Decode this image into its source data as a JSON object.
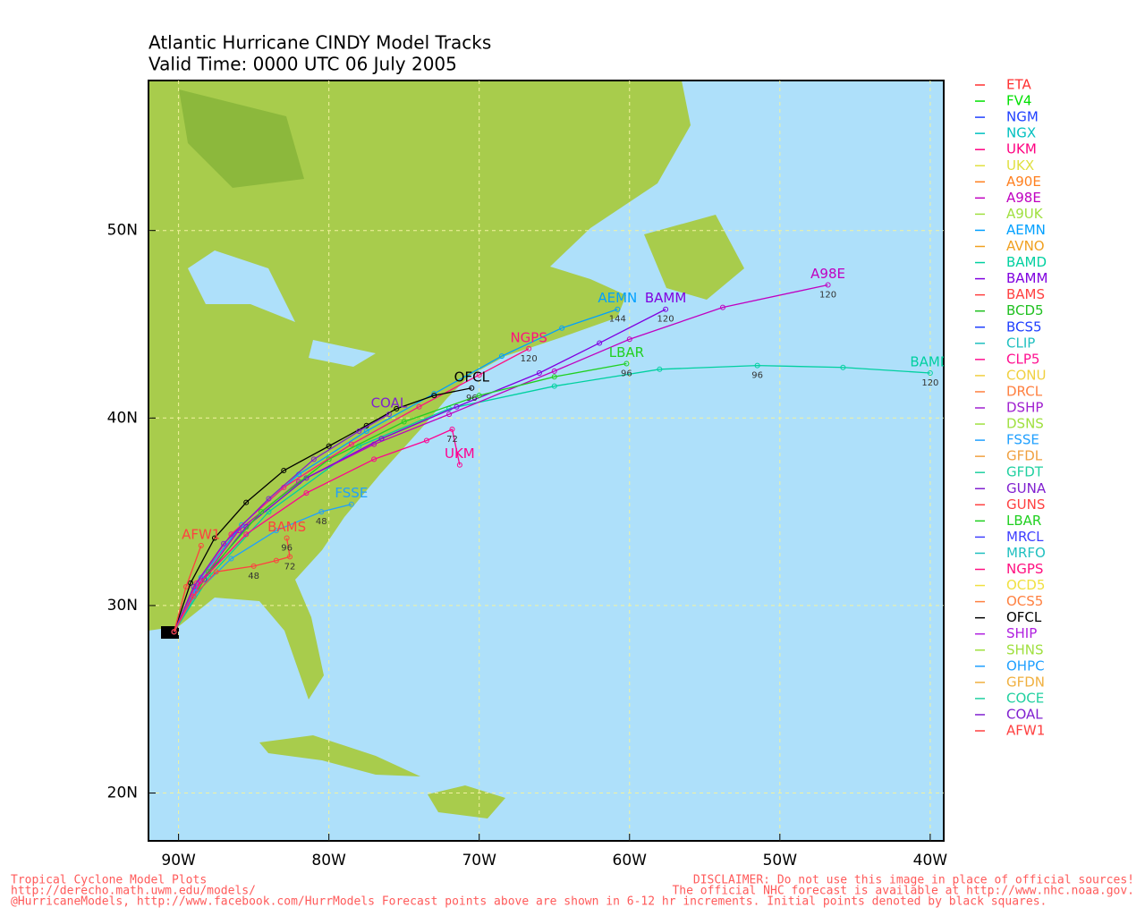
{
  "header": {
    "title": [
      "Atlantic Hurricane CINDY Model Tracks",
      "Valid Time: 0000 UTC 06 July 2005"
    ]
  },
  "map": {
    "xlim": [
      -92,
      -39.1
    ],
    "ylim": [
      17.45,
      58
    ],
    "xticks": [
      {
        "value": -90,
        "label": "90W"
      },
      {
        "value": -80,
        "label": "80W"
      },
      {
        "value": -70,
        "label": "70W"
      },
      {
        "value": -60,
        "label": "60W"
      },
      {
        "value": -50,
        "label": "50W"
      },
      {
        "value": -40,
        "label": "40W"
      }
    ],
    "yticks": [
      {
        "value": 20,
        "label": "20N"
      },
      {
        "value": 30,
        "label": "30N"
      },
      {
        "value": 40,
        "label": "40N"
      },
      {
        "value": 50,
        "label": "50N"
      }
    ],
    "grid": true,
    "tracks": [
      {
        "name": "BAMD",
        "color": "#00d0a0",
        "lon": [
          -90.3,
          -88,
          -84,
          -78,
          -72,
          -65,
          -58,
          -51.5,
          -45.8,
          -40
        ],
        "lat": [
          28.6,
          31.5,
          35,
          38.5,
          40.5,
          41.7,
          42.6,
          42.8,
          42.7,
          42.4
        ],
        "hours": [
          null,
          null,
          null,
          null,
          null,
          null,
          null,
          96,
          null,
          120
        ]
      },
      {
        "name": "A98E",
        "color": "#c000c0",
        "lon": [
          -90.3,
          -88.5,
          -86,
          -82,
          -77,
          -72,
          -65,
          -60,
          -53.8,
          -46.8
        ],
        "lat": [
          28.6,
          31.3,
          34,
          36.6,
          38.6,
          40.2,
          42.5,
          44.2,
          45.9,
          47.1
        ],
        "hours": [
          null,
          null,
          null,
          null,
          null,
          null,
          null,
          null,
          null,
          120
        ]
      },
      {
        "name": "BAMM",
        "color": "#8000e0",
        "lon": [
          -90.3,
          -88.3,
          -85.5,
          -81.5,
          -76.5,
          -71.5,
          -66,
          -62,
          -57.6
        ],
        "lat": [
          28.6,
          31.4,
          34.2,
          36.8,
          38.9,
          40.6,
          42.4,
          44,
          45.8
        ],
        "hours": [
          null,
          null,
          null,
          null,
          null,
          null,
          null,
          null,
          120
        ]
      },
      {
        "name": "AEMN",
        "color": "#00a0ff",
        "lon": [
          -90.3,
          -88.5,
          -85.8,
          -82,
          -77.5,
          -73,
          -68.5,
          -64.5,
          -60.8
        ],
        "lat": [
          28.6,
          31.5,
          34.3,
          37,
          39.3,
          41.3,
          43.3,
          44.8,
          45.8
        ],
        "hours": [
          null,
          null,
          null,
          null,
          null,
          null,
          null,
          null,
          144
        ]
      },
      {
        "name": "LBAR",
        "color": "#20d020",
        "lon": [
          -90.3,
          -88,
          -84.5,
          -80,
          -75,
          -70,
          -65,
          -60.2
        ],
        "lat": [
          28.6,
          31.8,
          35,
          37.8,
          39.8,
          41.2,
          42.2,
          42.9
        ],
        "hours": [
          null,
          null,
          null,
          null,
          null,
          null,
          null,
          96
        ]
      },
      {
        "name": "NGPS",
        "color": "#ff1080",
        "lon": [
          -90.3,
          -88.8,
          -86.5,
          -83,
          -78.5,
          -74,
          -70,
          -66.7
        ],
        "lat": [
          28.6,
          31.2,
          33.8,
          36.3,
          38.6,
          40.6,
          42.3,
          43.7
        ],
        "hours": [
          null,
          null,
          null,
          null,
          null,
          null,
          null,
          120
        ]
      },
      {
        "name": "OFCL",
        "color": "#000000",
        "lon": [
          -90.3,
          -89.2,
          -87.6,
          -85.5,
          -83,
          -80,
          -77.5,
          -75.5,
          -73,
          -70.5
        ],
        "lat": [
          28.6,
          31.2,
          33.6,
          35.5,
          37.2,
          38.5,
          39.6,
          40.5,
          41.2,
          41.6
        ],
        "hours": [
          null,
          null,
          null,
          null,
          null,
          null,
          null,
          null,
          null,
          96
        ]
      },
      {
        "name": "UKM",
        "color": "#ff0090",
        "lon": [
          -90.3,
          -88.5,
          -85.5,
          -81.5,
          -77,
          -73.5,
          -71.8,
          -71.3
        ],
        "lat": [
          28.6,
          31.3,
          33.8,
          36,
          37.8,
          38.8,
          39.4,
          37.5
        ],
        "hours": [
          null,
          null,
          null,
          null,
          null,
          null,
          72,
          null
        ]
      },
      {
        "name": "COAL",
        "color": "#8020d0",
        "lon": [
          -90.3,
          -89,
          -87,
          -84,
          -81,
          -78,
          -76
        ],
        "lat": [
          28.6,
          31,
          33.3,
          35.7,
          37.8,
          39.3,
          40.2
        ],
        "hours": [
          null,
          null,
          null,
          null,
          null,
          null,
          null
        ]
      },
      {
        "name": "FSSE",
        "color": "#20a0ff",
        "lon": [
          -90.3,
          -88.8,
          -86.5,
          -83.5,
          -80.5,
          -78.5
        ],
        "lat": [
          28.6,
          30.7,
          32.5,
          34,
          35,
          35.4
        ],
        "hours": [
          null,
          null,
          null,
          null,
          48,
          null
        ]
      },
      {
        "name": "BAMS",
        "color": "#ff4040",
        "lon": [
          -90.3,
          -89,
          -87.5,
          -85,
          -83.5,
          -82.6,
          -82.8
        ],
        "lat": [
          28.6,
          30.5,
          31.8,
          32.1,
          32.4,
          32.6,
          33.6
        ],
        "hours": [
          null,
          null,
          null,
          48,
          null,
          72,
          96
        ]
      },
      {
        "name": "AFW1",
        "color": "#ff4040",
        "lon": [
          -90.3,
          -89.5,
          -88.5
        ],
        "lat": [
          28.6,
          31,
          33.2
        ],
        "hours": [
          null,
          null,
          null
        ]
      }
    ]
  },
  "legend": [
    {
      "name": "ETA",
      "color": "#ff3030"
    },
    {
      "name": "FV4",
      "color": "#00e000"
    },
    {
      "name": "NGM",
      "color": "#2040ff"
    },
    {
      "name": "NGX",
      "color": "#00c0c0"
    },
    {
      "name": "UKM",
      "color": "#ff0080"
    },
    {
      "name": "UKX",
      "color": "#e0e040"
    },
    {
      "name": "A90E",
      "color": "#ff8020"
    },
    {
      "name": "A98E",
      "color": "#c000c0"
    },
    {
      "name": "A9UK",
      "color": "#a0e040"
    },
    {
      "name": "AEMN",
      "color": "#00a0ff"
    },
    {
      "name": "AVNO",
      "color": "#f0a020"
    },
    {
      "name": "BAMD",
      "color": "#00d0a0"
    },
    {
      "name": "BAMM",
      "color": "#8000e0"
    },
    {
      "name": "BAMS",
      "color": "#ff4040"
    },
    {
      "name": "BCD5",
      "color": "#20c020"
    },
    {
      "name": "BCS5",
      "color": "#2040ff"
    },
    {
      "name": "CLIP",
      "color": "#20c0c0"
    },
    {
      "name": "CLP5",
      "color": "#ff1090"
    },
    {
      "name": "CONU",
      "color": "#f0d040"
    },
    {
      "name": "DRCL",
      "color": "#ff8040"
    },
    {
      "name": "DSHP",
      "color": "#a020d0"
    },
    {
      "name": "DSNS",
      "color": "#a0e040"
    },
    {
      "name": "FSSE",
      "color": "#20a0ff"
    },
    {
      "name": "GFDL",
      "color": "#f0a040"
    },
    {
      "name": "GFDT",
      "color": "#20d0a0"
    },
    {
      "name": "GUNA",
      "color": "#8020d0"
    },
    {
      "name": "GUNS",
      "color": "#ff4040"
    },
    {
      "name": "LBAR",
      "color": "#20d020"
    },
    {
      "name": "MRCL",
      "color": "#4040ff"
    },
    {
      "name": "MRFO",
      "color": "#20c0c0"
    },
    {
      "name": "NGPS",
      "color": "#ff1080"
    },
    {
      "name": "OCD5",
      "color": "#f0e040"
    },
    {
      "name": "OCS5",
      "color": "#ff8040"
    },
    {
      "name": "OFCL",
      "color": "#000000"
    },
    {
      "name": "SHIP",
      "color": "#b020e0"
    },
    {
      "name": "SHNS",
      "color": "#a0e040"
    },
    {
      "name": "OHPC",
      "color": "#20a0ff"
    },
    {
      "name": "GFDN",
      "color": "#f0b040"
    },
    {
      "name": "COCE",
      "color": "#20d0a0"
    },
    {
      "name": "COAL",
      "color": "#8020d0"
    },
    {
      "name": "AFW1",
      "color": "#ff4040"
    }
  ],
  "footer": {
    "left": [
      "Tropical Cyclone Model Plots",
      "http://derecho.math.uwm.edu/models/",
      "@HurricaneModels, http://www.facebook.com/HurrModels  Forecast points above are shown in 6-12 hr increments. Initial points denoted by black squares."
    ],
    "right": [
      "DISCLAIMER: Do not use this image in place of official sources!",
      "The official NHC forecast is available at http://www.nhc.noaa.gov."
    ]
  }
}
